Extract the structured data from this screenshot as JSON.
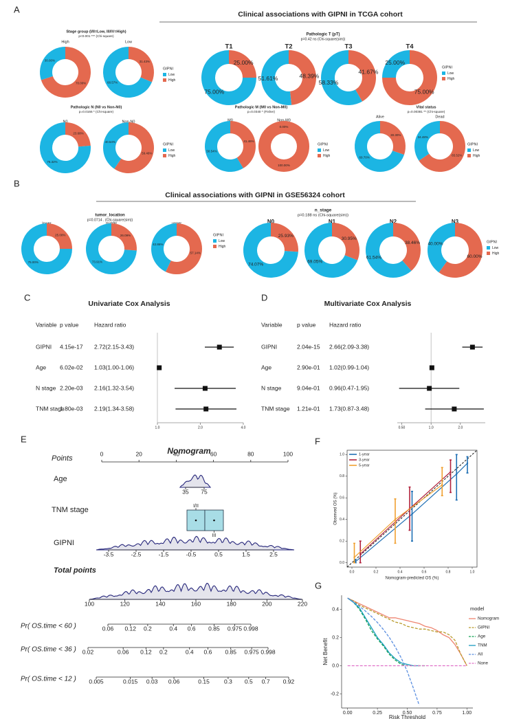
{
  "panels": [
    {
      "label": "A",
      "title": "Clinical associations with GIPNI in TCGA cohort"
    },
    {
      "label": "B",
      "title": "Clinical associations with GIPNI in GSE56324 cohort"
    },
    {
      "label": "C"
    },
    {
      "label": "D"
    },
    {
      "label": "E"
    },
    {
      "label": "F"
    },
    {
      "label": "G"
    }
  ],
  "chart_data": [
    {
      "type": "donut",
      "title": "Stage group (I/II=Low, III/IV=High)",
      "subtitle": "p<0.001 *** (Chi-square)",
      "categories": [
        "High",
        "Low"
      ],
      "legend_title": "GIPNI",
      "series": [
        {
          "name": "Low",
          "color": "#1cb5e3",
          "values": [
            30,
            68.57
          ],
          "value_labels": [
            "30.00%",
            "68.57%"
          ]
        },
        {
          "name": "High",
          "color": "#e4694f",
          "values": [
            70,
            31.43
          ],
          "value_labels": [
            "70.00%",
            "31.43%"
          ]
        }
      ]
    },
    {
      "type": "donut",
      "title": "Pathologic T (pT)",
      "subtitle": "p=0.42 ns (Chi-square(sim))",
      "categories": [
        "T1",
        "T2",
        "T3",
        "T4"
      ],
      "legend_title": "GIPNI",
      "series": [
        {
          "name": "Low",
          "color": "#1cb5e3",
          "values": [
            75,
            51.61,
            58.33,
            25
          ],
          "value_labels": [
            "75.00%",
            "51.61%",
            "58.33%",
            "25.00%"
          ]
        },
        {
          "name": "High",
          "color": "#e4694f",
          "values": [
            25,
            48.39,
            41.67,
            75
          ],
          "value_labels": [
            "25.00%",
            "48.39%",
            "41.67%",
            "75.00%"
          ]
        }
      ]
    },
    {
      "type": "donut",
      "title": "Pathologic N (N0 vs Non-N0)",
      "subtitle": "p=0.0166 * (Chi-square)",
      "categories": [
        "N0",
        "Non-N0"
      ],
      "legend_title": "GIPNI",
      "series": [
        {
          "name": "Low",
          "color": "#1cb5e3",
          "values": [
            76.32,
            40.54
          ],
          "value_labels": [
            "76.32%",
            "40.54%"
          ]
        },
        {
          "name": "High",
          "color": "#e4694f",
          "values": [
            23.68,
            59.46
          ],
          "value_labels": [
            "23.68%",
            "59.46%"
          ]
        }
      ]
    },
    {
      "type": "donut",
      "title": "Pathologic M (M0 vs Non-M0)",
      "subtitle": "p=0.0340 * (Fisher)",
      "categories": [
        "M0",
        "Non-M0"
      ],
      "legend_title": "GIPNI",
      "series": [
        {
          "name": "Low",
          "color": "#1cb5e3",
          "values": [
            58.54,
            0
          ],
          "value_labels": [
            "58.54%",
            "0.00%"
          ]
        },
        {
          "name": "High",
          "color": "#e4694f",
          "values": [
            41.46,
            100
          ],
          "value_labels": [
            "41.46%",
            "100.00%"
          ]
        }
      ]
    },
    {
      "type": "donut",
      "title": "Vital status",
      "subtitle": "p=0.00381 ** (Chi-square)",
      "categories": [
        "Alive",
        "Dead"
      ],
      "legend_title": "GIPNI",
      "series": [
        {
          "name": "Low",
          "color": "#1cb5e3",
          "values": [
            69.7,
            34.48
          ],
          "value_labels": [
            "69.70%",
            "34.48%"
          ]
        },
        {
          "name": "High",
          "color": "#e4694f",
          "values": [
            30.3,
            65.52
          ],
          "value_labels": [
            "30.30%",
            "65.52%"
          ]
        }
      ]
    },
    {
      "type": "donut",
      "title": "tumor_location",
      "subtitle": "p=0.0714 . (Chi-square(sim))",
      "categories": [
        "lower",
        "middle",
        "upper"
      ],
      "legend_title": "GIPNI",
      "series": [
        {
          "name": "Low",
          "color": "#1cb5e3",
          "values": [
            75,
            73.91,
            42.86
          ],
          "value_labels": [
            "75.00%",
            "73.91%",
            "42.86%"
          ]
        },
        {
          "name": "High",
          "color": "#e4694f",
          "values": [
            25,
            26.09,
            57.14
          ],
          "value_labels": [
            "25.00%",
            "26.09%",
            "57.14%"
          ]
        }
      ]
    },
    {
      "type": "donut",
      "title": "n_stage",
      "subtitle": "p=0.188 ns (Chi-square(sim))",
      "categories": [
        "N0",
        "N1",
        "N2",
        "N3"
      ],
      "legend_title": "GIPNI",
      "series": [
        {
          "name": "Low",
          "color": "#1cb5e3",
          "values": [
            74.07,
            69.05,
            61.54,
            40
          ],
          "value_labels": [
            "74.07%",
            "69.05%",
            "61.54%",
            "40.00%"
          ]
        },
        {
          "name": "High",
          "color": "#e4694f",
          "values": [
            25.93,
            30.95,
            38.46,
            60
          ],
          "value_labels": [
            "25.93%",
            "30.95%",
            "38.46%",
            "60.00%"
          ]
        }
      ]
    },
    {
      "type": "forest",
      "title": "Univariate Cox Analysis",
      "columns": [
        "Variable",
        "p value",
        "Hazard ratio"
      ],
      "variables": [
        "GIPNI",
        "Age",
        "N stage",
        "TNM stage"
      ],
      "p_values": [
        "4.15e-17",
        "6.02e-02",
        "2.20e-03",
        "1.80e-03"
      ],
      "hr": [
        2.72,
        1.03,
        2.16,
        2.19
      ],
      "lower": [
        2.15,
        1.0,
        1.32,
        1.34
      ],
      "upper": [
        3.43,
        1.06,
        3.54,
        3.58
      ],
      "value_labels": [
        "2.72(2.15-3.43)",
        "1.03(1.00-1.06)",
        "2.16(1.32-3.54)",
        "2.19(1.34-3.58)"
      ],
      "log_scale": true,
      "reference": 1,
      "xlim": [
        1,
        4
      ],
      "xticks": [
        {
          "value": 1,
          "label": "1.0"
        },
        {
          "value": 2,
          "label": "2.0"
        },
        {
          "value": 4,
          "label": "4.0"
        }
      ]
    },
    {
      "type": "forest",
      "title": "Multivariate Cox Analysis",
      "columns": [
        "Variable",
        "p value",
        "Hazard ratio"
      ],
      "variables": [
        "GIPNI",
        "Age",
        "N stage",
        "TNM stage"
      ],
      "p_values": [
        "2.04e-15",
        "2.90e-01",
        "9.04e-01",
        "1.21e-01"
      ],
      "hr": [
        2.66,
        1.02,
        0.96,
        1.73
      ],
      "lower": [
        2.09,
        0.99,
        0.47,
        0.87
      ],
      "upper": [
        3.38,
        1.04,
        1.95,
        3.48
      ],
      "value_labels": [
        "2.66(2.09-3.38)",
        "1.02(0.99-1.04)",
        "0.96(0.47-1.95)",
        "1.73(0.87-3.48)"
      ],
      "log_scale": true,
      "reference": 1,
      "xlim": [
        0.45,
        3.6
      ],
      "xticks": [
        {
          "value": 0.5,
          "label": "0.50"
        },
        {
          "value": 1,
          "label": "1.0"
        },
        {
          "value": 2,
          "label": "2.0"
        }
      ]
    },
    {
      "type": "nomogram",
      "title": "Nomogram",
      "rows": [
        {
          "label": "Points",
          "xlim": [
            0,
            100
          ],
          "xticks": [
            0,
            20,
            40,
            60,
            80,
            100
          ]
        },
        {
          "label": "Age",
          "xlim": [
            35,
            75
          ],
          "xticks": [
            35,
            75
          ]
        },
        {
          "label": "TNM stage",
          "levels": [
            "I/II",
            "III"
          ]
        },
        {
          "label": "GIPNI",
          "xlim": [
            -3.5,
            2.5
          ],
          "xticks": [
            -3.5,
            -2.5,
            -1.5,
            -0.5,
            0.5,
            1.5,
            2.5
          ]
        },
        {
          "label": "Total points",
          "xlim": [
            100,
            220
          ],
          "xticks": [
            100,
            120,
            140,
            160,
            180,
            200,
            220
          ]
        },
        {
          "label": "Pr( OS.time < 60 )",
          "scale": "cloglog",
          "xlim": [
            0.06,
            0.998
          ],
          "xticks": [
            0.06,
            0.12,
            0.2,
            0.4,
            0.6,
            0.85,
            0.975,
            0.998
          ]
        },
        {
          "label": "Pr( OS.time < 36 )",
          "scale": "cloglog",
          "xlim": [
            0.02,
            0.998
          ],
          "xticks": [
            0.02,
            0.06,
            0.12,
            0.2,
            0.4,
            0.6,
            0.85,
            0.975,
            0.998
          ]
        },
        {
          "label": "Pr( OS.time < 12 )",
          "scale": "cloglog",
          "xlim": [
            0.005,
            0.92
          ],
          "xticks": [
            0.005,
            0.015,
            0.03,
            0.06,
            0.15,
            0.3,
            0.5,
            0.7,
            0.92
          ]
        }
      ]
    },
    {
      "type": "calibration",
      "xlabel": "Nomogram-predicted OS (%)",
      "ylabel": "Observed OS (%)",
      "xlim": [
        -0.04,
        1.04
      ],
      "ylim": [
        -0.04,
        1.04
      ],
      "xticks": [
        {
          "value": 0,
          "label": "0.0"
        },
        0.2,
        0.4,
        0.6,
        0.8,
        {
          "value": 1,
          "label": "1.0"
        }
      ],
      "yticks": [
        {
          "value": 0,
          "label": "0.0"
        },
        0.2,
        0.4,
        0.6,
        0.8,
        {
          "value": 1,
          "label": "1.0"
        }
      ],
      "series": [
        {
          "name": "1-year",
          "color": "#1f6fb4",
          "x": [
            0.03,
            0.5,
            0.87,
            0.96
          ],
          "values": [
            0.01,
            0.45,
            0.82,
            0.92
          ],
          "lower": [
            0,
            0.2,
            0.58,
            0.83
          ],
          "upper": [
            0.03,
            0.66,
            1.0,
            0.98
          ]
        },
        {
          "name": "3-year",
          "color": "#b2223c",
          "x": [
            0.07,
            0.48,
            0.82
          ],
          "values": [
            0.08,
            0.5,
            0.84
          ],
          "lower": [
            0,
            0.3,
            0.65
          ],
          "upper": [
            0.2,
            0.7,
            0.95
          ]
        },
        {
          "name": "5-year",
          "color": "#f0a030",
          "x": [
            0.02,
            0.36,
            0.75
          ],
          "values": [
            0.05,
            0.4,
            0.72
          ],
          "lower": [
            0,
            0.18,
            0.62
          ],
          "upper": [
            0.18,
            0.59,
            0.88
          ]
        }
      ]
    },
    {
      "type": "dca",
      "xlabel": "Risk Threshold",
      "ylabel": "Net Benefit",
      "legend_title": "model",
      "xlim": [
        -0.05,
        1.05
      ],
      "ylim": [
        -0.3,
        0.5
      ],
      "xticks": [
        {
          "value": 0,
          "label": "0.00"
        },
        0.25,
        {
          "value": 0.5,
          "label": "0.50"
        },
        0.75,
        {
          "value": 1,
          "label": "1.00"
        }
      ],
      "yticks": [
        -0.2,
        {
          "value": 0,
          "label": "0.0"
        },
        0.2,
        0.4
      ],
      "x": [
        0,
        0.05,
        0.1,
        0.15,
        0.2,
        0.25,
        0.3,
        0.35,
        0.4,
        0.45,
        0.5,
        0.55,
        0.6,
        0.65,
        0.7,
        0.75,
        0.8,
        0.85,
        0.9,
        0.95,
        1
      ],
      "series": [
        {
          "name": "Nomogram",
          "color": "#ee8470",
          "dashed": false,
          "values": [
            0.48,
            0.46,
            0.44,
            0.42,
            0.4,
            0.38,
            0.36,
            0.34,
            0.34,
            0.33,
            0.32,
            0.31,
            0.3,
            0.28,
            0.27,
            0.25,
            0.22,
            0.2,
            0.15,
            0.08,
            0
          ]
        },
        {
          "name": "GIPNI",
          "color": "#b89a2a",
          "dashed": true,
          "values": [
            0.48,
            0.46,
            0.43,
            0.41,
            0.39,
            0.37,
            0.35,
            0.33,
            0.31,
            0.3,
            0.28,
            0.27,
            0.26,
            0.26,
            0.25,
            0.24,
            0.24,
            0.22,
            0.18,
            0.08,
            0
          ]
        },
        {
          "name": "Age",
          "color": "#10a050",
          "dashed": true,
          "values": [
            0.48,
            0.45,
            0.4,
            0.33,
            0.25,
            0.19,
            0.14,
            0.08,
            0.04,
            0.01,
            0,
            0,
            0,
            0,
            null,
            null,
            null,
            null,
            null,
            null,
            null
          ]
        },
        {
          "name": "TNM",
          "color": "#1a9cc0",
          "dashed": false,
          "values": [
            0.48,
            0.45,
            0.41,
            0.34,
            0.27,
            0.2,
            0.15,
            0.09,
            0.05,
            0.02,
            0.01,
            0,
            0,
            null,
            null,
            null,
            null,
            null,
            null,
            null,
            null
          ]
        },
        {
          "name": "All",
          "color": "#5a8ee0",
          "dashed": true,
          "values": [
            0.48,
            0.453,
            0.422,
            0.388,
            0.35,
            0.307,
            0.257,
            0.2,
            0.133,
            0.055,
            -0.04,
            -0.156,
            -0.28,
            null,
            null,
            null,
            null,
            null,
            null,
            null,
            null
          ]
        },
        {
          "name": "None",
          "color": "#e070c8",
          "dashed": true,
          "values": [
            0,
            0,
            0,
            0,
            0,
            0,
            0,
            0,
            0,
            0,
            0,
            0,
            0,
            0,
            0,
            0,
            0,
            0,
            0,
            0,
            0
          ]
        }
      ]
    }
  ]
}
